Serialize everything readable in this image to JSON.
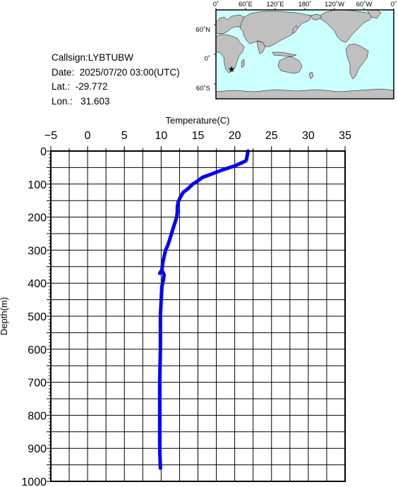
{
  "info": {
    "callsign": "Callsign:LYBTUBW",
    "date": "Date:  2025/07/20 03:00(UTC)",
    "lat": "Lat.:  -29.772",
    "lon": "Lon.:   31.603"
  },
  "map": {
    "top_labels": [
      "0˚",
      "60˚E",
      "120˚E",
      "180˚",
      "120˚W",
      "60˚W",
      "0˚"
    ],
    "left_labels": [
      "60˚N",
      "0˚",
      "60˚S"
    ],
    "marker": {
      "lat": -29.772,
      "lon": 31.603,
      "symbol": "★",
      "color": "#ff0000"
    },
    "ocean_color": "#ccffff",
    "land_color": "#c0c0c0"
  },
  "chart_data": {
    "type": "line",
    "title": "",
    "xlabel": "Temperature(C)",
    "ylabel": "Depth(m)",
    "xlim": [
      -5,
      35
    ],
    "ylim": [
      1000,
      0
    ],
    "x_ticks": [
      -5,
      0,
      5,
      10,
      15,
      20,
      25,
      30,
      35
    ],
    "y_ticks": [
      0,
      100,
      200,
      300,
      400,
      500,
      600,
      700,
      800,
      900,
      1000
    ],
    "grid": true,
    "line_color": "#0000ff",
    "series": [
      {
        "x": [
          21.8,
          21.6,
          21.5,
          21.0,
          20.5,
          20.0,
          19.3,
          18.6,
          18.0,
          17.4,
          16.8,
          16.2,
          15.6,
          15.0,
          14.3,
          13.6,
          13.0,
          12.6,
          12.3,
          12.2,
          12.2,
          12.1,
          11.9,
          11.6,
          11.4,
          11.2,
          10.9,
          10.6,
          10.4,
          10.2,
          10.1,
          9.8,
          10.2,
          10.4,
          10.3,
          10.1,
          10.0,
          9.9,
          9.9,
          9.8,
          9.8,
          9.8,
          9.8,
          9.9
        ],
        "y": [
          0,
          25,
          30,
          35,
          40,
          45,
          50,
          55,
          60,
          65,
          70,
          75,
          80,
          90,
          100,
          115,
          125,
          140,
          155,
          170,
          185,
          200,
          215,
          235,
          250,
          265,
          285,
          300,
          320,
          340,
          360,
          370,
          365,
          375,
          390,
          410,
          450,
          500,
          600,
          700,
          800,
          850,
          900,
          960
        ]
      }
    ]
  }
}
